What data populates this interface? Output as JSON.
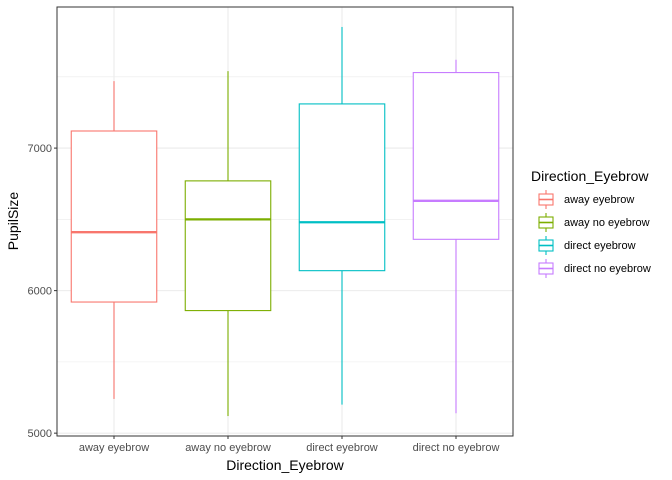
{
  "chart_data": {
    "type": "boxplot",
    "title": "",
    "xlabel": "Direction_Eyebrow",
    "ylabel": "PupilSize",
    "ylim": [
      4980,
      7990
    ],
    "yticks": [
      5000,
      6000,
      7000
    ],
    "grid": true,
    "legend": {
      "title": "Direction_Eyebrow",
      "position": "right",
      "entries": [
        "away eyebrow",
        "away no eyebrow",
        "direct eyebrow",
        "direct no eyebrow"
      ]
    },
    "categories": [
      "away eyebrow",
      "away no eyebrow",
      "direct eyebrow",
      "direct no eyebrow"
    ],
    "series": [
      {
        "category": "away eyebrow",
        "color": "#F8766D",
        "min": 5240,
        "q1": 5920,
        "median": 6410,
        "q3": 7120,
        "max": 7470
      },
      {
        "category": "away no eyebrow",
        "color": "#7CAE00",
        "min": 5120,
        "q1": 5860,
        "median": 6500,
        "q3": 6770,
        "max": 7540
      },
      {
        "category": "direct eyebrow",
        "color": "#00BFC4",
        "min": 5200,
        "q1": 6140,
        "median": 6480,
        "q3": 7310,
        "max": 7850
      },
      {
        "category": "direct no eyebrow",
        "color": "#C77CFF",
        "min": 5140,
        "q1": 6360,
        "median": 6630,
        "q3": 7530,
        "max": 7620
      }
    ]
  }
}
